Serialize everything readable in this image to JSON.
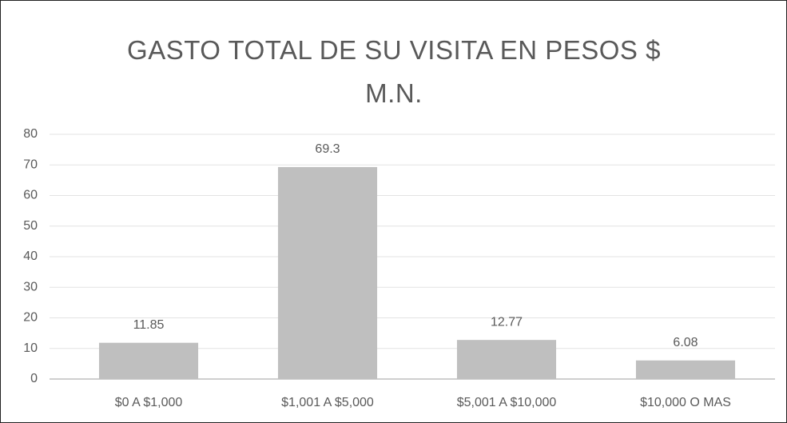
{
  "chart_data": {
    "type": "bar",
    "title": "GASTO TOTAL DE SU VISITA EN PESOS $ M.N.",
    "categories": [
      "$0 A $1,000",
      "$1,001 A $5,000",
      "$5,001 A $10,000",
      "$10,000 O MAS"
    ],
    "values": [
      11.85,
      69.3,
      12.77,
      6.08
    ],
    "color": "#bfbfbf",
    "ylim": [
      0,
      80
    ],
    "yticks": [
      0,
      10,
      20,
      30,
      40,
      50,
      60,
      70,
      80
    ],
    "grid": true
  }
}
